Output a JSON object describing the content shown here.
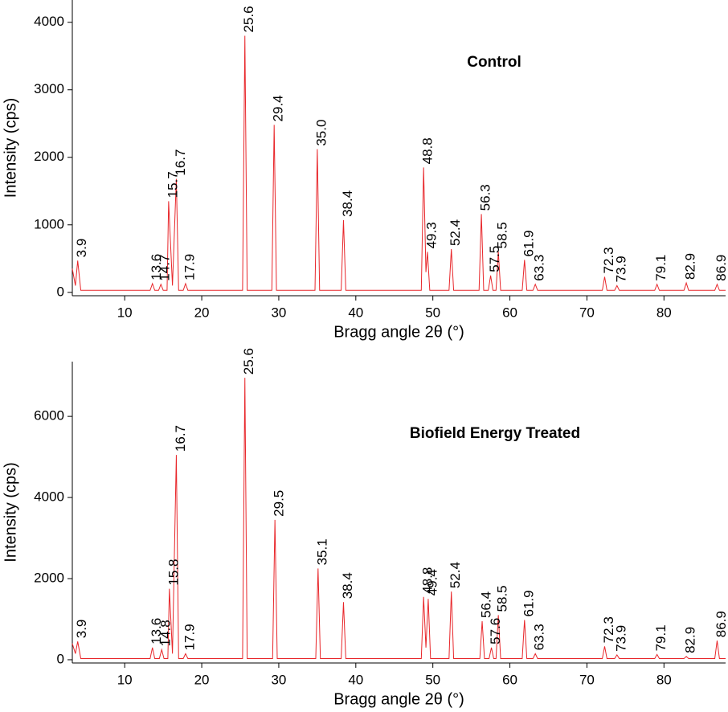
{
  "chart_data": [
    {
      "type": "line",
      "title": "Control",
      "xlabel": "Bragg angle 2θ (°)",
      "ylabel": "Intensity (cps)",
      "xlim": [
        3.2,
        88
      ],
      "ylim": [
        -50,
        4330
      ],
      "xticks": [
        10,
        20,
        30,
        40,
        50,
        60,
        70,
        80
      ],
      "yticks": [
        0,
        1000,
        2000,
        3000,
        4000
      ],
      "series": [
        {
          "name": "Control",
          "color": "#e8262a",
          "x": [
            3.2,
            3.6,
            3.9,
            4.3,
            13.3,
            13.6,
            13.9,
            14.4,
            14.7,
            15.0,
            15.5,
            15.7,
            16.2,
            16.7,
            17.0,
            17.6,
            17.9,
            18.2,
            25.3,
            25.6,
            25.9,
            29.1,
            29.4,
            29.7,
            34.7,
            35.0,
            35.3,
            38.1,
            38.4,
            38.7,
            48.5,
            48.8,
            49.1,
            49.3,
            49.6,
            52.1,
            52.4,
            52.7,
            56.0,
            56.3,
            56.6,
            57.2,
            57.5,
            57.8,
            58.2,
            58.5,
            58.8,
            61.6,
            61.9,
            62.2,
            63.0,
            63.3,
            63.6,
            72.0,
            72.3,
            72.6,
            73.6,
            73.9,
            74.2,
            78.8,
            79.1,
            79.4,
            82.6,
            82.9,
            83.2,
            86.6,
            86.9,
            87.2,
            88
          ],
          "values": [
            350,
            100,
            470,
            30,
            30,
            130,
            30,
            30,
            120,
            30,
            30,
            1350,
            100,
            1680,
            30,
            30,
            130,
            30,
            30,
            3800,
            30,
            30,
            2480,
            30,
            30,
            2120,
            30,
            30,
            1070,
            30,
            30,
            1850,
            300,
            600,
            30,
            30,
            640,
            30,
            30,
            1160,
            30,
            30,
            250,
            30,
            30,
            600,
            30,
            30,
            480,
            30,
            30,
            120,
            30,
            30,
            230,
            30,
            30,
            100,
            30,
            30,
            120,
            30,
            30,
            140,
            30,
            30,
            120,
            30,
            30
          ]
        }
      ],
      "annotations": [
        {
          "text": "3.9",
          "x": 3.9,
          "y": 470
        },
        {
          "text": "13.6",
          "x": 13.6,
          "y": 130
        },
        {
          "text": "14.7",
          "x": 14.7,
          "y": 120
        },
        {
          "text": "15.7",
          "x": 15.7,
          "y": 1350
        },
        {
          "text": "16.7",
          "x": 16.7,
          "y": 1680
        },
        {
          "text": "17.9",
          "x": 17.9,
          "y": 130
        },
        {
          "text": "25.6",
          "x": 25.6,
          "y": 3800
        },
        {
          "text": "29.4",
          "x": 29.4,
          "y": 2480
        },
        {
          "text": "35.0",
          "x": 35.0,
          "y": 2120
        },
        {
          "text": "38.4",
          "x": 38.4,
          "y": 1070
        },
        {
          "text": "48.8",
          "x": 48.8,
          "y": 1850
        },
        {
          "text": "49.3",
          "x": 49.3,
          "y": 600
        },
        {
          "text": "52.4",
          "x": 52.4,
          "y": 640
        },
        {
          "text": "56.3",
          "x": 56.3,
          "y": 1160
        },
        {
          "text": "57.5",
          "x": 57.5,
          "y": 250
        },
        {
          "text": "58.5",
          "x": 58.5,
          "y": 600
        },
        {
          "text": "61.9",
          "x": 61.9,
          "y": 480
        },
        {
          "text": "63.3",
          "x": 63.3,
          "y": 120
        },
        {
          "text": "72.3",
          "x": 72.3,
          "y": 230
        },
        {
          "text": "73.9",
          "x": 73.9,
          "y": 100
        },
        {
          "text": "79.1",
          "x": 79.1,
          "y": 120
        },
        {
          "text": "82.9",
          "x": 82.9,
          "y": 140
        },
        {
          "text": "86.9",
          "x": 86.9,
          "y": 120
        }
      ]
    },
    {
      "type": "line",
      "title": "Biofield Energy Treated",
      "xlabel": "Bragg angle 2θ (°)",
      "ylabel": "Intensity (cps)",
      "xlim": [
        3.2,
        88
      ],
      "ylim": [
        -80,
        7350
      ],
      "xticks": [
        10,
        20,
        30,
        40,
        50,
        60,
        70,
        80
      ],
      "yticks": [
        0,
        2000,
        4000,
        6000
      ],
      "series": [
        {
          "name": "Biofield Energy Treated",
          "color": "#e8262a",
          "x": [
            3.2,
            3.6,
            3.9,
            4.3,
            13.3,
            13.6,
            13.9,
            14.5,
            14.8,
            15.1,
            15.6,
            15.8,
            16.2,
            16.7,
            17.0,
            17.6,
            17.9,
            18.2,
            25.3,
            25.6,
            25.9,
            29.2,
            29.5,
            29.8,
            34.8,
            35.1,
            35.4,
            38.1,
            38.4,
            38.7,
            48.5,
            48.8,
            49.1,
            49.4,
            49.7,
            52.1,
            52.4,
            52.7,
            56.1,
            56.4,
            56.7,
            57.3,
            57.6,
            57.9,
            58.2,
            58.5,
            58.8,
            61.6,
            61.9,
            62.2,
            63.0,
            63.3,
            63.6,
            72.0,
            72.3,
            72.6,
            73.6,
            73.9,
            74.2,
            78.8,
            79.1,
            79.4,
            82.6,
            82.9,
            83.2,
            86.6,
            86.9,
            87.2,
            88
          ],
          "values": [
            400,
            150,
            450,
            30,
            30,
            300,
            30,
            30,
            250,
            30,
            30,
            1750,
            150,
            5050,
            30,
            30,
            150,
            30,
            30,
            6950,
            30,
            30,
            3450,
            30,
            30,
            2250,
            30,
            30,
            1420,
            30,
            30,
            1550,
            300,
            1500,
            30,
            30,
            1680,
            30,
            30,
            950,
            30,
            30,
            300,
            30,
            30,
            1100,
            30,
            30,
            980,
            30,
            30,
            150,
            30,
            30,
            330,
            30,
            30,
            120,
            30,
            30,
            130,
            30,
            30,
            80,
            30,
            30,
            470,
            30,
            30
          ]
        }
      ],
      "annotations": [
        {
          "text": "3.9",
          "x": 3.9,
          "y": 450
        },
        {
          "text": "13.6",
          "x": 13.6,
          "y": 300
        },
        {
          "text": "14.8",
          "x": 14.8,
          "y": 250
        },
        {
          "text": "15.8",
          "x": 15.8,
          "y": 1750
        },
        {
          "text": "16.7",
          "x": 16.7,
          "y": 5050
        },
        {
          "text": "17.9",
          "x": 17.9,
          "y": 150
        },
        {
          "text": "25.6",
          "x": 25.6,
          "y": 6950
        },
        {
          "text": "29.5",
          "x": 29.5,
          "y": 3450
        },
        {
          "text": "35.1",
          "x": 35.1,
          "y": 2250
        },
        {
          "text": "38.4",
          "x": 38.4,
          "y": 1420
        },
        {
          "text": "48.8",
          "x": 48.8,
          "y": 1550
        },
        {
          "text": "49.4",
          "x": 49.4,
          "y": 1500
        },
        {
          "text": "52.4",
          "x": 52.4,
          "y": 1680
        },
        {
          "text": "56.4",
          "x": 56.4,
          "y": 950
        },
        {
          "text": "57.6",
          "x": 57.6,
          "y": 300
        },
        {
          "text": "58.5",
          "x": 58.5,
          "y": 1100
        },
        {
          "text": "61.9",
          "x": 61.9,
          "y": 980
        },
        {
          "text": "63.3",
          "x": 63.3,
          "y": 150
        },
        {
          "text": "72.3",
          "x": 72.3,
          "y": 330
        },
        {
          "text": "73.9",
          "x": 73.9,
          "y": 120
        },
        {
          "text": "79.1",
          "x": 79.1,
          "y": 130
        },
        {
          "text": "82.9",
          "x": 82.9,
          "y": 80
        },
        {
          "text": "86.9",
          "x": 86.9,
          "y": 470
        }
      ]
    }
  ]
}
